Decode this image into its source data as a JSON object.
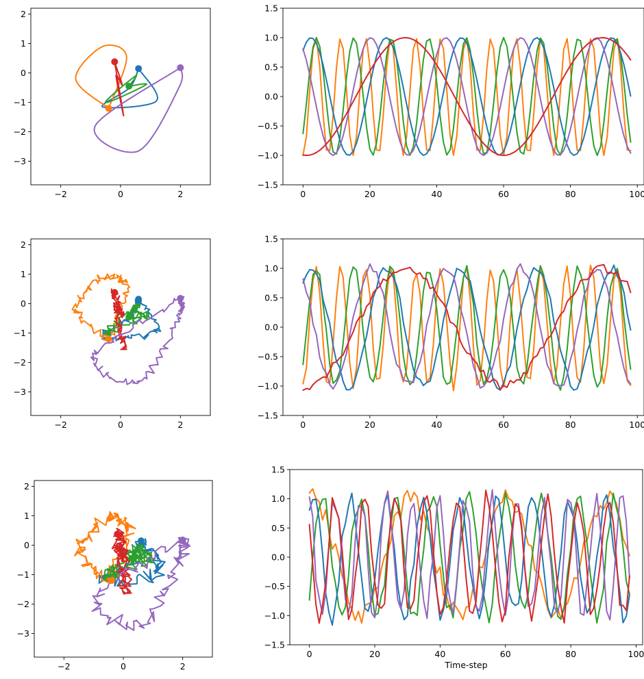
{
  "palette": {
    "blue": "#1f77b4",
    "orange": "#ff7f0e",
    "green": "#2ca02c",
    "red": "#d62728",
    "purple": "#9467bd"
  },
  "chart_data": [
    {
      "type": "line",
      "panel": "trajectory",
      "row": 1,
      "noise": 0.0,
      "xlim": [
        -3,
        3
      ],
      "ylim": [
        -3.8,
        2.2
      ],
      "xticks": [
        -2,
        0,
        2
      ],
      "yticks": [
        -3,
        -2,
        -1,
        0,
        1,
        2
      ],
      "xlabel": "",
      "ylabel": "",
      "series": [
        {
          "color": "blue",
          "values": [
            [
              0.6,
              0.15
            ],
            [
              1.2,
              -0.95
            ],
            [
              -0.6,
              -1.15
            ],
            [
              0.3,
              -0.5
            ],
            [
              0.6,
              0.15
            ]
          ]
        },
        {
          "color": "orange",
          "values": [
            [
              -0.4,
              -1.2
            ],
            [
              -1.5,
              -0.2
            ],
            [
              -0.6,
              0.9
            ],
            [
              0.2,
              0.55
            ],
            [
              -0.4,
              -1.2
            ]
          ]
        },
        {
          "color": "green",
          "values": [
            [
              0.28,
              -0.45
            ],
            [
              0.85,
              -0.4
            ],
            [
              -0.5,
              -1.0
            ],
            [
              0.5,
              -0.1
            ],
            [
              0.28,
              -0.45
            ]
          ]
        },
        {
          "color": "red",
          "values": [
            [
              -0.2,
              0.38
            ],
            [
              0.1,
              -1.45
            ],
            [
              -0.15,
              -0.1
            ],
            [
              0.05,
              -0.4
            ],
            [
              -0.2,
              0.38
            ]
          ]
        },
        {
          "color": "purple",
          "values": [
            [
              2.0,
              0.18
            ],
            [
              -0.85,
              -1.8
            ],
            [
              0.6,
              -2.65
            ],
            [
              1.95,
              -0.5
            ],
            [
              2.0,
              0.18
            ]
          ]
        }
      ]
    },
    {
      "type": "line",
      "panel": "time-series",
      "row": 1,
      "noise": 0.0,
      "xlim": [
        -6,
        102
      ],
      "ylim": [
        -1.5,
        1.5
      ],
      "xticks": [
        0,
        20,
        40,
        60,
        80,
        100
      ],
      "yticks": [
        -1.5,
        -1.0,
        -0.5,
        0.0,
        0.5,
        1.0,
        1.5
      ],
      "xlabel": "",
      "ylabel": "",
      "series": [
        {
          "color": "orange",
          "period": 7.5,
          "phase": 4.7
        },
        {
          "color": "green",
          "period": 11.2,
          "phase": 5.6
        },
        {
          "color": "blue",
          "period": 22.5,
          "phase": 0.9
        },
        {
          "color": "purple",
          "period": 22.5,
          "phase": 2.2
        },
        {
          "color": "red",
          "period": 59.0,
          "phase": 4.6
        }
      ]
    },
    {
      "type": "line",
      "panel": "trajectory",
      "row": 2,
      "noise": 0.12,
      "xlim": [
        -3,
        3
      ],
      "ylim": [
        -3.8,
        2.2
      ],
      "xticks": [
        -2,
        0,
        2
      ],
      "yticks": [
        -3,
        -2,
        -1,
        0,
        1,
        2
      ],
      "xlabel": "",
      "ylabel": "",
      "series": [
        {
          "color": "blue",
          "values": [
            [
              0.6,
              0.15
            ],
            [
              1.2,
              -0.95
            ],
            [
              -0.6,
              -1.15
            ],
            [
              0.3,
              -0.5
            ],
            [
              0.6,
              0.15
            ]
          ]
        },
        {
          "color": "orange",
          "values": [
            [
              -0.4,
              -1.2
            ],
            [
              -1.5,
              -0.2
            ],
            [
              -0.6,
              0.9
            ],
            [
              0.2,
              0.55
            ],
            [
              -0.4,
              -1.2
            ]
          ]
        },
        {
          "color": "green",
          "values": [
            [
              0.28,
              -0.45
            ],
            [
              0.85,
              -0.4
            ],
            [
              -0.5,
              -1.0
            ],
            [
              0.5,
              -0.1
            ],
            [
              0.28,
              -0.45
            ]
          ]
        },
        {
          "color": "red",
          "values": [
            [
              -0.2,
              0.38
            ],
            [
              0.1,
              -1.45
            ],
            [
              -0.15,
              -0.1
            ],
            [
              0.05,
              -0.4
            ],
            [
              -0.2,
              0.38
            ]
          ]
        },
        {
          "color": "purple",
          "values": [
            [
              2.0,
              0.18
            ],
            [
              -0.85,
              -1.8
            ],
            [
              0.6,
              -2.65
            ],
            [
              1.95,
              -0.5
            ],
            [
              2.0,
              0.18
            ]
          ]
        }
      ]
    },
    {
      "type": "line",
      "panel": "time-series",
      "row": 2,
      "noise": 0.08,
      "xlim": [
        -6,
        102
      ],
      "ylim": [
        -1.5,
        1.5
      ],
      "xticks": [
        0,
        20,
        40,
        60,
        80,
        100
      ],
      "yticks": [
        -1.5,
        -1.0,
        -0.5,
        0.0,
        0.5,
        1.0,
        1.5
      ],
      "xlabel": "",
      "ylabel": "",
      "series": [
        {
          "color": "orange",
          "period": 7.5,
          "phase": 4.7
        },
        {
          "color": "green",
          "period": 11.2,
          "phase": 5.6
        },
        {
          "color": "blue",
          "period": 22.5,
          "phase": 0.9
        },
        {
          "color": "purple",
          "period": 22.5,
          "phase": 2.2
        },
        {
          "color": "red",
          "period": 59.0,
          "phase": 4.6
        }
      ]
    },
    {
      "type": "line",
      "panel": "trajectory",
      "row": 3,
      "noise": 0.22,
      "xlim": [
        -3,
        3
      ],
      "ylim": [
        -3.8,
        2.2
      ],
      "xticks": [
        -2,
        0,
        2
      ],
      "yticks": [
        -3,
        -2,
        -1,
        0,
        1,
        2
      ],
      "xlabel": "",
      "ylabel": "",
      "series": [
        {
          "color": "blue",
          "values": [
            [
              0.6,
              0.15
            ],
            [
              1.2,
              -0.95
            ],
            [
              -0.6,
              -1.15
            ],
            [
              0.3,
              -0.5
            ],
            [
              0.6,
              0.15
            ]
          ]
        },
        {
          "color": "orange",
          "values": [
            [
              -0.4,
              -1.2
            ],
            [
              -1.5,
              -0.2
            ],
            [
              -0.6,
              0.9
            ],
            [
              0.2,
              0.55
            ],
            [
              -0.4,
              -1.2
            ]
          ]
        },
        {
          "color": "green",
          "values": [
            [
              0.28,
              -0.45
            ],
            [
              0.85,
              -0.4
            ],
            [
              -0.5,
              -1.0
            ],
            [
              0.5,
              -0.1
            ],
            [
              0.28,
              -0.45
            ]
          ]
        },
        {
          "color": "red",
          "values": [
            [
              -0.2,
              0.38
            ],
            [
              0.1,
              -1.45
            ],
            [
              -0.15,
              -0.1
            ],
            [
              0.05,
              -0.4
            ],
            [
              -0.2,
              0.38
            ]
          ]
        },
        {
          "color": "purple",
          "values": [
            [
              2.0,
              0.18
            ],
            [
              -0.85,
              -1.8
            ],
            [
              0.6,
              -2.65
            ],
            [
              1.95,
              -0.5
            ],
            [
              2.0,
              0.18
            ]
          ]
        }
      ]
    },
    {
      "type": "line",
      "panel": "time-series",
      "row": 3,
      "noise": 0.18,
      "xlim": [
        -6,
        102
      ],
      "ylim": [
        -1.5,
        1.5
      ],
      "xticks": [
        0,
        20,
        40,
        60,
        80,
        100
      ],
      "yticks": [
        -1.5,
        -1.0,
        -0.5,
        0.0,
        0.5,
        1.0,
        1.5
      ],
      "xlabel": "Time-step",
      "ylabel": "",
      "series": [
        {
          "color": "orange",
          "period": 30.0,
          "phase": 1.4
        },
        {
          "color": "green",
          "period": 11.2,
          "phase": 5.6
        },
        {
          "color": "blue",
          "period": 11.2,
          "phase": 0.9
        },
        {
          "color": "purple",
          "period": 8.0,
          "phase": 1.8
        },
        {
          "color": "red",
          "period": 9.3,
          "phase": 2.6
        }
      ]
    }
  ]
}
